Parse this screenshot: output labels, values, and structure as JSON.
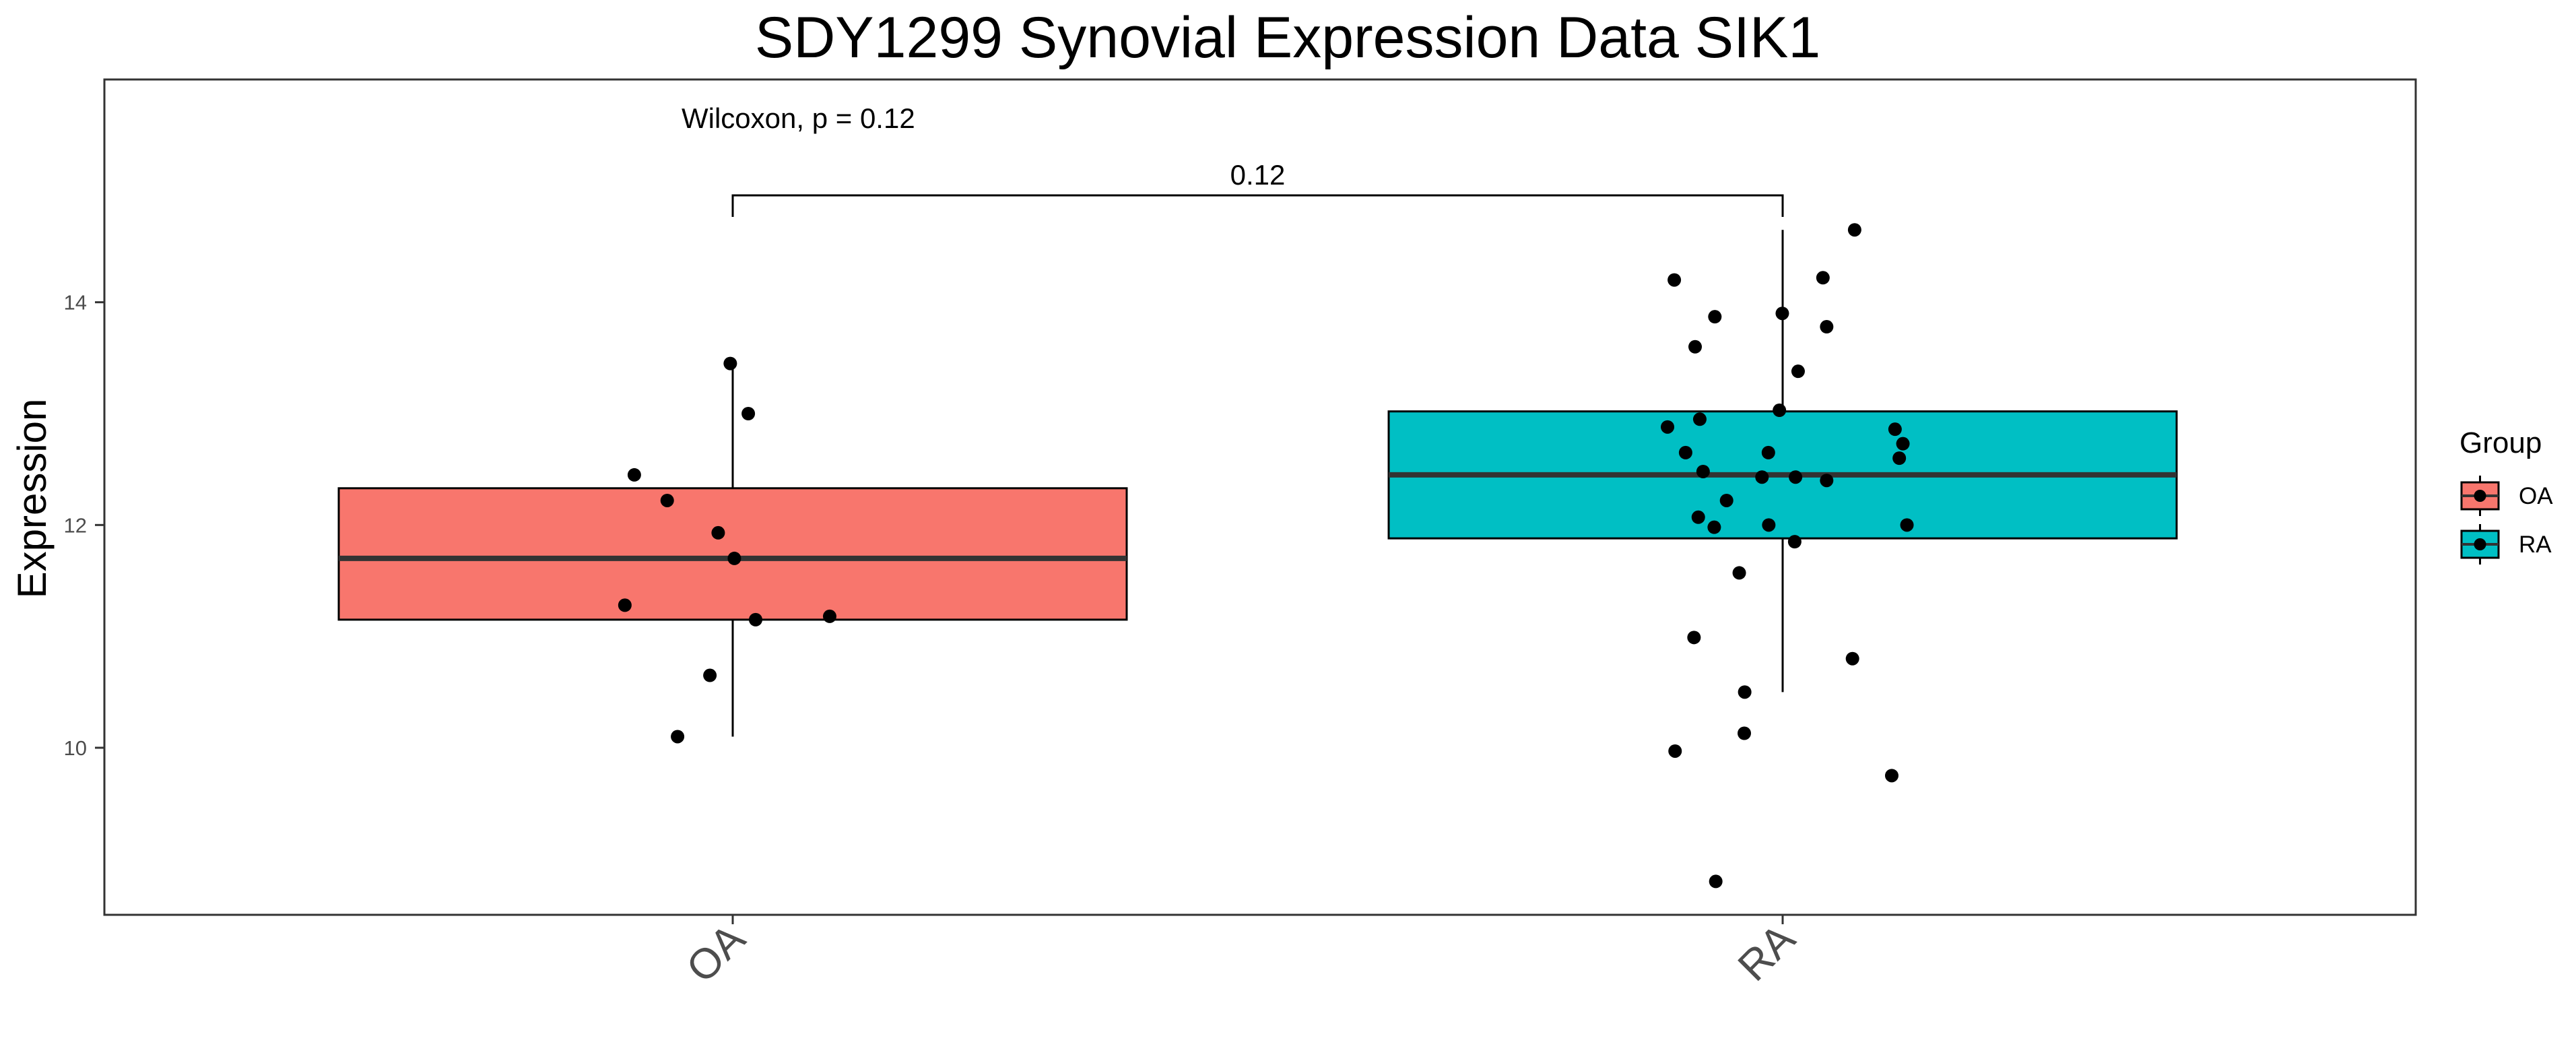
{
  "chart_data": {
    "type": "box",
    "title": "SDY1299 Synovial Expression Data SIK1",
    "xlabel": "",
    "ylabel": "Expression",
    "categories": [
      "OA",
      "RA"
    ],
    "y_ticks": [
      10,
      12,
      14
    ],
    "ylim": [
      8.5,
      16.0
    ],
    "grid": false,
    "legend_position": "right",
    "legend": {
      "title": "Group",
      "entries": [
        "OA",
        "RA"
      ]
    },
    "colors": {
      "OA": "#F8766D",
      "RA": "#00BFC4",
      "median": "#333333",
      "point": "#000000"
    },
    "boxes": [
      {
        "group": "OA",
        "whisker_low": 10.1,
        "q1": 11.15,
        "median": 11.7,
        "q3": 12.33,
        "whisker_high": 13.45
      },
      {
        "group": "RA",
        "whisker_low": 10.5,
        "q1": 11.88,
        "median": 12.45,
        "q3": 13.02,
        "whisker_high": 14.65
      }
    ],
    "points": {
      "OA": [
        13.45,
        13.0,
        12.45,
        12.22,
        11.93,
        11.7,
        11.28,
        11.18,
        11.15,
        10.65,
        10.1
      ],
      "RA": [
        14.65,
        14.22,
        14.2,
        13.9,
        13.87,
        13.78,
        13.6,
        13.38,
        13.03,
        12.95,
        12.88,
        12.86,
        12.73,
        12.65,
        12.65,
        12.6,
        12.48,
        12.43,
        12.43,
        12.4,
        12.22,
        12.07,
        12.0,
        12.0,
        11.98,
        11.85,
        11.57,
        10.99,
        10.8,
        10.5,
        10.13,
        9.97,
        9.75,
        8.8
      ]
    },
    "annotations": {
      "test_label": "Wilcoxon, p = 0.12",
      "bracket_label": "0.12"
    }
  }
}
